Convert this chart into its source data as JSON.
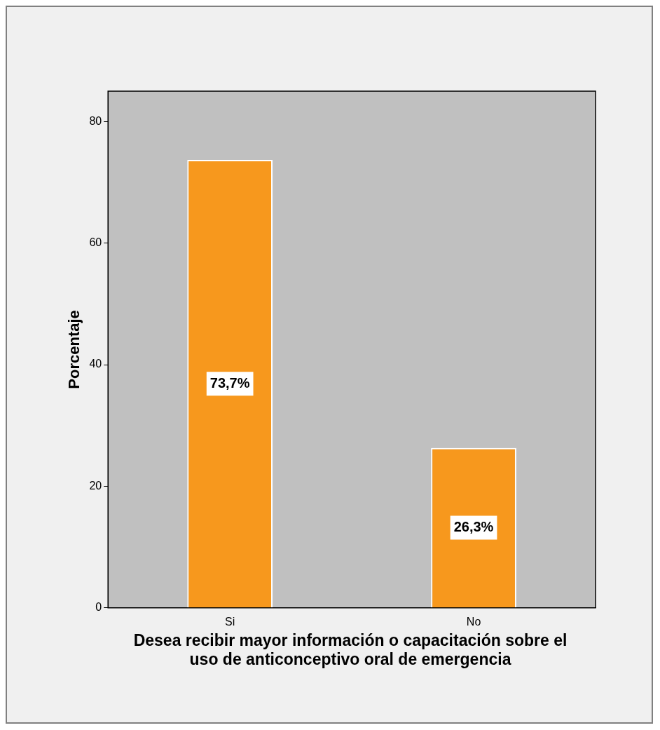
{
  "chart_data": {
    "type": "bar",
    "xlabel": "Desea recibir mayor información o capacitación sobre el uso de anticonceptivo oral de emergencia",
    "ylabel": "Porcentaje",
    "categories": [
      "Si",
      "No"
    ],
    "values": [
      73.7,
      26.3
    ],
    "value_labels": [
      "73,7%",
      "26,3%"
    ],
    "color": "#f7981d",
    "ylim": [
      0,
      85
    ],
    "yticks": [
      0,
      20,
      40,
      60,
      80
    ],
    "grid": false,
    "legend": false
  }
}
